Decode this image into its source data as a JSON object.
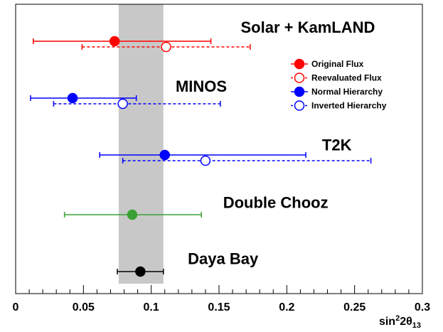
{
  "chart_data": {
    "type": "scatter",
    "title": "",
    "xlabel": "sin²2θ",
    "xlabel_main": "sin",
    "xlabel_sup": "2",
    "xlabel_mid": "2θ",
    "xlabel_sub": "13",
    "xlim": [
      0,
      0.3
    ],
    "x_ticks": [
      {
        "value": 0,
        "label": "0"
      },
      {
        "value": 0.05,
        "label": "0.05"
      },
      {
        "value": 0.1,
        "label": "0.1"
      },
      {
        "value": 0.15,
        "label": "0.15"
      },
      {
        "value": 0.2,
        "label": "0.2"
      },
      {
        "value": 0.25,
        "label": "0.25"
      },
      {
        "value": 0.3,
        "label": "0.3"
      }
    ],
    "band": {
      "x_low": 0.076,
      "x_high": 0.109,
      "color": "#c8c8c8"
    },
    "experiments": [
      "Solar + KamLAND",
      "MINOS",
      "T2K",
      "Double Chooz",
      "Daya Bay"
    ],
    "points": [
      {
        "experiment": "Solar + KamLAND",
        "series": "Original Flux",
        "row": 0.45,
        "x": 0.073,
        "low": 0.013,
        "high": 0.144,
        "color": "#ff0000",
        "dashed": false,
        "filled": true
      },
      {
        "experiment": "Solar + KamLAND",
        "series": "Reevaluated Flux",
        "row": 0.55,
        "x": 0.111,
        "low": 0.049,
        "high": 0.173,
        "color": "#ff0000",
        "dashed": true,
        "filled": false
      },
      {
        "experiment": "MINOS",
        "series": "Normal Hierarchy",
        "row": 1.45,
        "x": 0.042,
        "low": 0.011,
        "high": 0.089,
        "color": "#0000ff",
        "dashed": false,
        "filled": true
      },
      {
        "experiment": "MINOS",
        "series": "Inverted Hierarchy",
        "row": 1.55,
        "x": 0.079,
        "low": 0.028,
        "high": 0.151,
        "color": "#0000ff",
        "dashed": true,
        "filled": false
      },
      {
        "experiment": "T2K",
        "series": "Normal Hierarchy",
        "row": 2.45,
        "x": 0.11,
        "low": 0.062,
        "high": 0.214,
        "color": "#0000ff",
        "dashed": false,
        "filled": true
      },
      {
        "experiment": "T2K",
        "series": "Inverted Hierarchy",
        "row": 2.55,
        "x": 0.14,
        "low": 0.079,
        "high": 0.262,
        "color": "#0000ff",
        "dashed": true,
        "filled": false
      },
      {
        "experiment": "Double Chooz",
        "series": "Double Chooz",
        "row": 3.5,
        "x": 0.086,
        "low": 0.036,
        "high": 0.137,
        "color": "#3aa035",
        "dashed": false,
        "filled": true
      },
      {
        "experiment": "Daya Bay",
        "series": "Daya Bay",
        "row": 4.5,
        "x": 0.092,
        "low": 0.075,
        "high": 0.109,
        "color": "#000000",
        "dashed": false,
        "filled": true
      }
    ],
    "labels": [
      {
        "text": "Solar + KamLAND",
        "x": 0.166
      },
      {
        "text": "MINOS",
        "x": 0.118
      },
      {
        "text": "T2K",
        "x": 0.226
      },
      {
        "text": "Double Chooz",
        "x": 0.153
      },
      {
        "text": "Daya Bay",
        "x": 0.127
      }
    ],
    "legend": {
      "position": "top-right",
      "entries": [
        {
          "label": "Original Flux",
          "color": "#ff0000",
          "dashed": false,
          "filled": true
        },
        {
          "label": "Reevaluated Flux",
          "color": "#ff0000",
          "dashed": true,
          "filled": false
        },
        {
          "label": "Normal Hierarchy",
          "color": "#0000ff",
          "dashed": false,
          "filled": true
        },
        {
          "label": "Inverted Hierarchy",
          "color": "#0000ff",
          "dashed": true,
          "filled": false
        }
      ]
    },
    "grid": false
  }
}
